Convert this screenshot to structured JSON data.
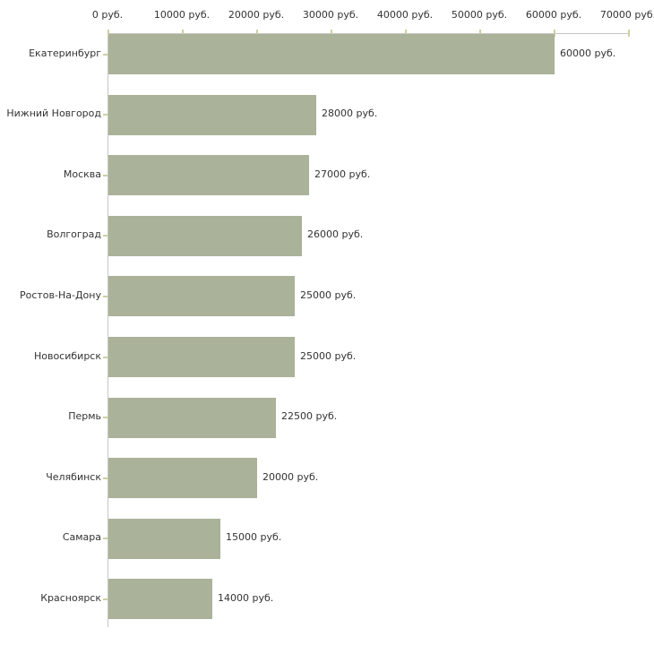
{
  "chart_data": {
    "type": "bar",
    "orientation": "horizontal",
    "title": "",
    "xlabel": "",
    "ylabel": "",
    "categories": [
      "Екатеринбург",
      "Нижний Новгород",
      "Москва",
      "Волгоград",
      "Ростов-На-Дону",
      "Новосибирск",
      "Пермь",
      "Челябинск",
      "Самара",
      "Красноярск"
    ],
    "values": [
      60000,
      28000,
      27000,
      26000,
      25000,
      25000,
      22500,
      20000,
      15000,
      14000
    ],
    "value_labels": [
      "60000 руб.",
      "28000 руб.",
      "27000 руб.",
      "26000 руб.",
      "25000 руб.",
      "25000 руб.",
      "22500 руб.",
      "20000 руб.",
      "15000 руб.",
      "14000 руб."
    ],
    "xlim": [
      0,
      70000
    ],
    "x_ticks": [
      0,
      10000,
      20000,
      30000,
      40000,
      50000,
      60000,
      70000
    ],
    "x_tick_labels": [
      "0 руб.",
      "10000 руб.",
      "20000 руб.",
      "30000 руб.",
      "40000 руб.",
      "50000 руб.",
      "60000 руб.",
      "70000 руб."
    ],
    "axis_position": "top",
    "legend": false,
    "grid": false,
    "colors": {
      "bar": "#aab299",
      "axis_line": "#c6c6c6",
      "tick_mark": "#cfcfa2",
      "text": "#333333",
      "background": "#ffffff"
    }
  }
}
